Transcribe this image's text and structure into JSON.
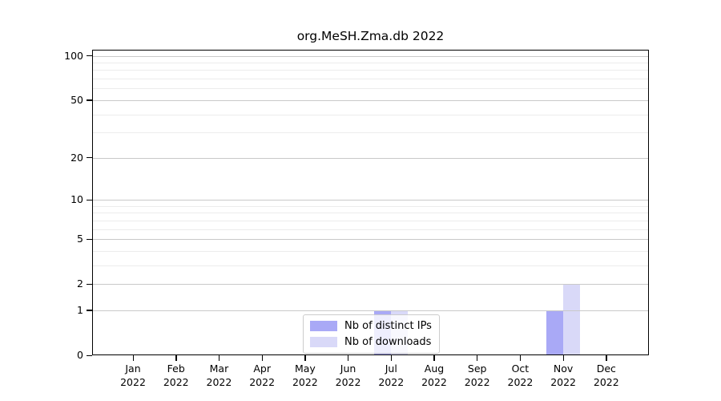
{
  "title": "org.MeSH.Zma.db 2022",
  "chart_data": {
    "type": "bar",
    "title": "org.MeSH.Zma.db 2022",
    "categories": [
      "Jan 2022",
      "Feb 2022",
      "Mar 2022",
      "Apr 2022",
      "May 2022",
      "Jun 2022",
      "Jul 2022",
      "Aug 2022",
      "Sep 2022",
      "Oct 2022",
      "Nov 2022",
      "Dec 2022"
    ],
    "x_tick_months": [
      "Jan",
      "Feb",
      "Mar",
      "Apr",
      "May",
      "Jun",
      "Jul",
      "Aug",
      "Sep",
      "Oct",
      "Nov",
      "Dec"
    ],
    "x_tick_year": "2022",
    "series": [
      {
        "name": "Nb of distinct IPs",
        "color": "#a9a9f6",
        "values": [
          0,
          0,
          0,
          0,
          0,
          0,
          1,
          0,
          0,
          0,
          1,
          0
        ]
      },
      {
        "name": "Nb of downloads",
        "color": "#d9d9f8",
        "values": [
          0,
          0,
          0,
          0,
          0,
          0,
          1,
          0,
          0,
          0,
          2,
          0
        ]
      }
    ],
    "xlabel": "",
    "ylabel": "",
    "y_scale": "log1p",
    "ylim": [
      0,
      110
    ],
    "y_ticks": [
      0,
      1,
      2,
      5,
      10,
      20,
      50,
      100
    ],
    "y_minor_ticks": [
      3,
      4,
      6,
      7,
      8,
      9,
      30,
      40,
      60,
      70,
      80,
      90
    ],
    "grid": "horizontal major and minor lines, drawn above bars",
    "legend_position": "bottom-center"
  },
  "colors": {
    "background": "#ffffff",
    "axis": "#000000",
    "major_grid": "#c9c9c9",
    "minor_grid": "#ececec",
    "legend_border": "#cccccc",
    "bar_distinct_ips": "#a9a9f6",
    "bar_downloads": "#d9d9f8"
  }
}
